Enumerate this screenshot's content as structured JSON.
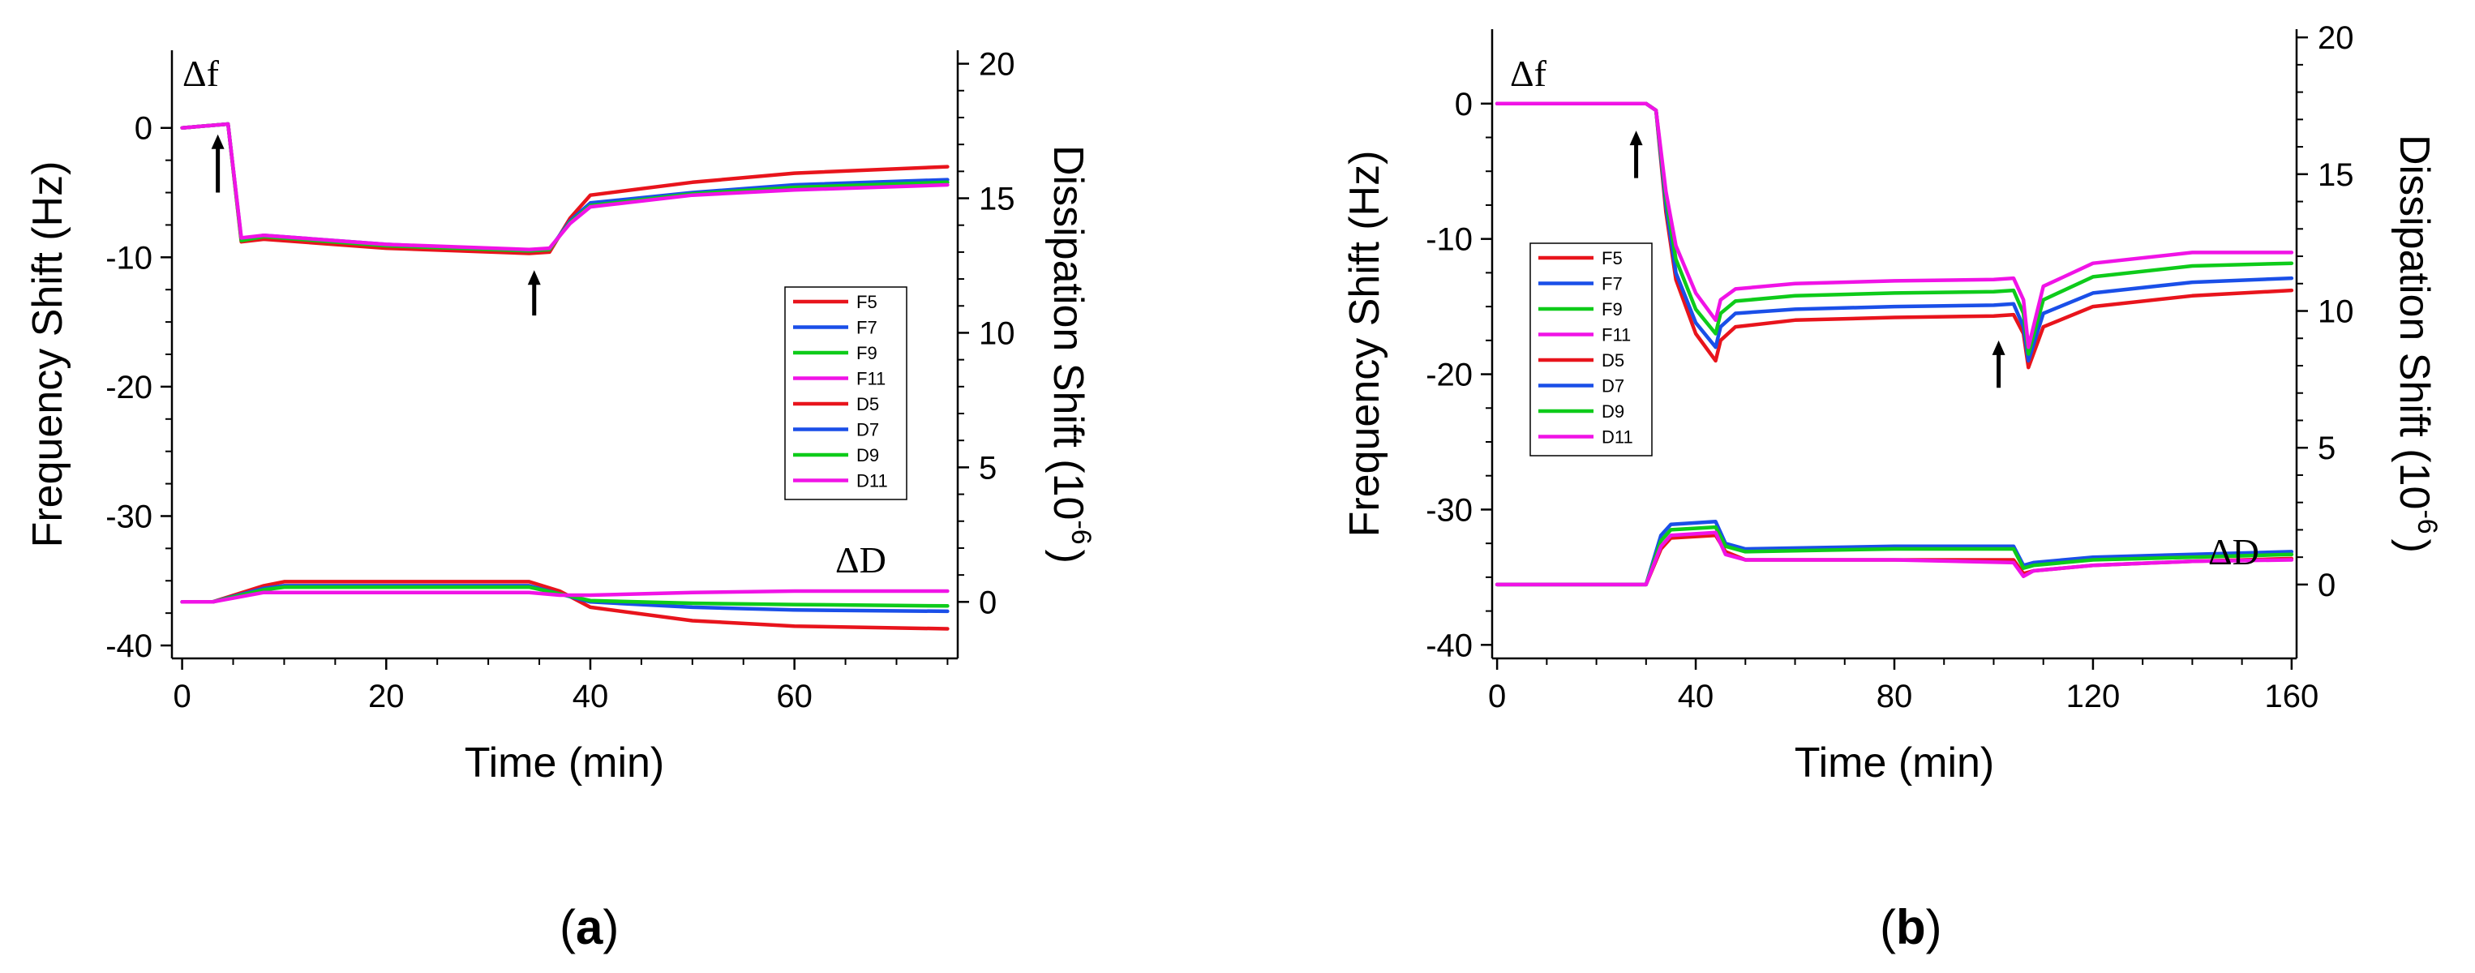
{
  "colors": {
    "F5": "#e8141c",
    "F7": "#1a4fe8",
    "F9": "#0ecb1a",
    "F11": "#f013e6",
    "D5": "#e8141c",
    "D7": "#1a4fe8",
    "D9": "#0ecb1a",
    "D11": "#f013e6"
  },
  "chart_data": [
    {
      "type": "line",
      "panel_label": "a",
      "xlabel": "Time (min)",
      "ylabel_left": "Frequency Shift (Hz)",
      "ylabel_right": "Dissipation Shift (10",
      "ylabel_right_exp": "-6",
      "ylabel_right_close": ")",
      "corner_label_f": "Δf",
      "corner_label_d": "ΔD",
      "xlim": [
        -1,
        76
      ],
      "ylim_left": [
        -41,
        6
      ],
      "ylim_right": [
        -2.1,
        20.5
      ],
      "xticks": [
        0,
        20,
        40,
        60
      ],
      "yticks_left": [
        0,
        -10,
        -20,
        -30,
        -40
      ],
      "yticks_right": [
        0,
        5,
        10,
        15,
        20
      ],
      "arrows": [
        {
          "x": 3.5,
          "y_tip": -0.5,
          "y_tail": -5
        },
        {
          "x": 34.5,
          "y_tip": -11,
          "y_tail": -14.5
        }
      ],
      "legend": [
        "F5",
        "F7",
        "F9",
        "F11",
        "D5",
        "D7",
        "D9",
        "D11"
      ],
      "series": [
        {
          "name": "F5",
          "axis": "left",
          "x": [
            0,
            4.5,
            5.8,
            8,
            20,
            34,
            36,
            38,
            40,
            50,
            60,
            75
          ],
          "y": [
            0,
            0.3,
            -8.8,
            -8.6,
            -9.3,
            -9.7,
            -9.6,
            -7,
            -5.2,
            -4.2,
            -3.5,
            -3
          ]
        },
        {
          "name": "F7",
          "axis": "left",
          "x": [
            0,
            4.5,
            5.8,
            8,
            20,
            34,
            36,
            38,
            40,
            50,
            60,
            75
          ],
          "y": [
            0,
            0.3,
            -8.6,
            -8.3,
            -9.0,
            -9.5,
            -9.4,
            -7.2,
            -5.8,
            -5,
            -4.4,
            -4
          ]
        },
        {
          "name": "F9",
          "axis": "left",
          "x": [
            0,
            4.5,
            5.8,
            8,
            20,
            34,
            36,
            38,
            40,
            50,
            60,
            75
          ],
          "y": [
            0,
            0.3,
            -8.7,
            -8.4,
            -9.1,
            -9.5,
            -9.4,
            -7.3,
            -6,
            -5.1,
            -4.6,
            -4.2
          ]
        },
        {
          "name": "F11",
          "axis": "left",
          "x": [
            0,
            4.5,
            5.8,
            8,
            20,
            34,
            36,
            38,
            40,
            50,
            60,
            75
          ],
          "y": [
            0,
            0.3,
            -8.5,
            -8.3,
            -9.0,
            -9.4,
            -9.3,
            -7.4,
            -6.1,
            -5.2,
            -4.8,
            -4.4
          ]
        },
        {
          "name": "D5",
          "axis": "right",
          "x": [
            0,
            3,
            8,
            10,
            34,
            37,
            40,
            50,
            60,
            75
          ],
          "y": [
            0,
            0,
            0.6,
            0.75,
            0.75,
            0.4,
            -0.2,
            -0.7,
            -0.9,
            -1.0
          ]
        },
        {
          "name": "D7",
          "axis": "right",
          "x": [
            0,
            3,
            8,
            10,
            34,
            37,
            40,
            50,
            60,
            75
          ],
          "y": [
            0,
            0,
            0.5,
            0.6,
            0.6,
            0.3,
            0,
            -0.2,
            -0.3,
            -0.35
          ]
        },
        {
          "name": "D9",
          "axis": "right",
          "x": [
            0,
            3,
            8,
            10,
            34,
            37,
            40,
            50,
            60,
            75
          ],
          "y": [
            0,
            0,
            0.45,
            0.55,
            0.55,
            0.3,
            0.05,
            -0.05,
            -0.1,
            -0.15
          ]
        },
        {
          "name": "D11",
          "axis": "right",
          "x": [
            0,
            3,
            8,
            10,
            34,
            37,
            40,
            50,
            60,
            75
          ],
          "y": [
            0,
            0,
            0.35,
            0.35,
            0.35,
            0.25,
            0.25,
            0.35,
            0.4,
            0.4
          ]
        }
      ]
    },
    {
      "type": "line",
      "panel_label": "b",
      "xlabel": "Time (min)",
      "ylabel_left": "Frequency Shift (Hz)",
      "ylabel_right": "Dissipation Shift (10",
      "ylabel_right_exp": "-6",
      "ylabel_right_close": ")",
      "corner_label_f": "Δf",
      "corner_label_d": "ΔD",
      "xlim": [
        -1,
        161
      ],
      "ylim_left": [
        -41,
        5.5
      ],
      "ylim_right": [
        -2.7,
        20.3
      ],
      "xticks": [
        0,
        40,
        80,
        120,
        160
      ],
      "yticks_left": [
        0,
        -10,
        -20,
        -30,
        -40
      ],
      "yticks_right": [
        0,
        5,
        10,
        15,
        20
      ],
      "arrows": [
        {
          "x": 28,
          "y_tip": -2,
          "y_tail": -5.5
        },
        {
          "x": 101,
          "y_tip": -17.5,
          "y_tail": -21
        }
      ],
      "legend": [
        "F5",
        "F7",
        "F9",
        "F11",
        "D5",
        "D7",
        "D9",
        "D11"
      ],
      "series": [
        {
          "name": "F5",
          "axis": "left",
          "x": [
            0,
            30,
            32,
            34,
            36,
            40,
            44,
            45,
            48,
            60,
            80,
            100,
            104,
            106,
            107,
            110,
            120,
            140,
            160
          ],
          "y": [
            0,
            0,
            -0.5,
            -8,
            -13,
            -17,
            -19,
            -17.5,
            -16.5,
            -16,
            -15.8,
            -15.7,
            -15.6,
            -17,
            -19.5,
            -16.5,
            -15,
            -14.2,
            -13.8
          ]
        },
        {
          "name": "F7",
          "axis": "left",
          "x": [
            0,
            30,
            32,
            34,
            36,
            40,
            44,
            45,
            48,
            60,
            80,
            100,
            104,
            106,
            107,
            110,
            120,
            140,
            160
          ],
          "y": [
            0,
            0,
            -0.5,
            -7.5,
            -12.5,
            -16.2,
            -18,
            -16.5,
            -15.5,
            -15.2,
            -15,
            -14.9,
            -14.8,
            -16.5,
            -19,
            -15.5,
            -14,
            -13.2,
            -12.9
          ]
        },
        {
          "name": "F9",
          "axis": "left",
          "x": [
            0,
            30,
            32,
            34,
            36,
            40,
            44,
            45,
            48,
            60,
            80,
            100,
            104,
            106,
            107,
            110,
            120,
            140,
            160
          ],
          "y": [
            0,
            0,
            -0.5,
            -7,
            -11.5,
            -15.2,
            -17,
            -15.5,
            -14.6,
            -14.2,
            -14,
            -13.9,
            -13.8,
            -15.5,
            -18.5,
            -14.5,
            -12.8,
            -12,
            -11.8
          ]
        },
        {
          "name": "F11",
          "axis": "left",
          "x": [
            0,
            30,
            32,
            34,
            36,
            40,
            44,
            45,
            48,
            60,
            80,
            100,
            104,
            106,
            107,
            110,
            120,
            140,
            160
          ],
          "y": [
            0,
            0,
            -0.5,
            -6.5,
            -10.5,
            -14,
            -16,
            -14.5,
            -13.7,
            -13.3,
            -13.1,
            -13,
            -12.9,
            -14.5,
            -18,
            -13.5,
            -11.8,
            -11,
            -11
          ]
        },
        {
          "name": "D5",
          "axis": "right",
          "x": [
            0,
            30,
            33,
            35,
            44,
            46,
            50,
            80,
            104,
            106,
            108,
            120,
            140,
            160
          ],
          "y": [
            0,
            0,
            1.3,
            1.7,
            1.8,
            1.2,
            0.9,
            0.9,
            0.9,
            0.4,
            0.5,
            0.7,
            0.85,
            0.95
          ]
        },
        {
          "name": "D7",
          "axis": "right",
          "x": [
            0,
            30,
            33,
            35,
            44,
            46,
            50,
            80,
            104,
            106,
            108,
            120,
            140,
            160
          ],
          "y": [
            0,
            0,
            1.8,
            2.2,
            2.3,
            1.5,
            1.3,
            1.4,
            1.4,
            0.7,
            0.8,
            1.0,
            1.1,
            1.2
          ]
        },
        {
          "name": "D9",
          "axis": "right",
          "x": [
            0,
            30,
            33,
            35,
            44,
            46,
            50,
            80,
            104,
            106,
            108,
            120,
            140,
            160
          ],
          "y": [
            0,
            0,
            1.6,
            2.0,
            2.1,
            1.4,
            1.2,
            1.3,
            1.3,
            0.6,
            0.7,
            0.9,
            1.0,
            1.1
          ]
        },
        {
          "name": "D11",
          "axis": "right",
          "x": [
            0,
            30,
            33,
            35,
            44,
            46,
            50,
            80,
            104,
            106,
            108,
            120,
            140,
            160
          ],
          "y": [
            0,
            0,
            1.4,
            1.8,
            1.9,
            1.1,
            0.9,
            0.9,
            0.8,
            0.3,
            0.5,
            0.7,
            0.85,
            0.9
          ]
        }
      ]
    }
  ]
}
